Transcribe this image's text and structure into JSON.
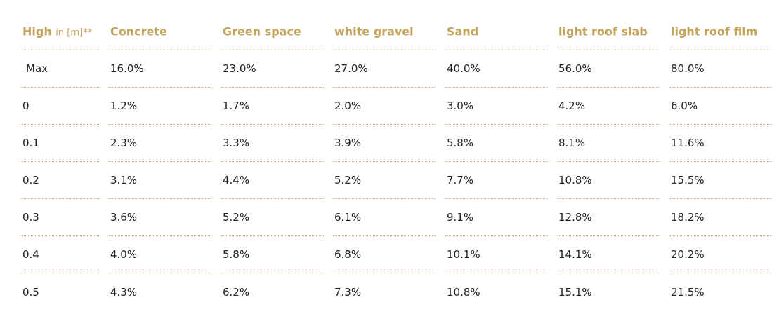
{
  "table": {
    "header": [
      {
        "main": "High",
        "sub": "in [m]**"
      },
      "Concrete",
      "Green space",
      "white gravel",
      "Sand",
      "light roof slab",
      "light roof film"
    ],
    "rows": [
      [
        "Max",
        "16.0%",
        "23.0%",
        "27.0%",
        "40.0%",
        "56.0%",
        "80.0%"
      ],
      [
        "0",
        "1.2%",
        "1.7%",
        "2.0%",
        "3.0%",
        "4.2%",
        "6.0%"
      ],
      [
        "0.1",
        "2.3%",
        "3.3%",
        "3.9%",
        "5.8%",
        "8.1%",
        "11.6%"
      ],
      [
        "0.2",
        "3.1%",
        "4.4%",
        "5.2%",
        "7.7%",
        "10.8%",
        "15.5%"
      ],
      [
        "0.3",
        "3.6%",
        "5.2%",
        "6.1%",
        "9.1%",
        "12.8%",
        "18.2%"
      ],
      [
        "0.4",
        "4.0%",
        "5.8%",
        "6.8%",
        "10.1%",
        "14.1%",
        "20.2%"
      ],
      [
        "0.5",
        "4.3%",
        "6.2%",
        "7.3%",
        "10.8%",
        "15.1%",
        "21.5%"
      ]
    ]
  }
}
